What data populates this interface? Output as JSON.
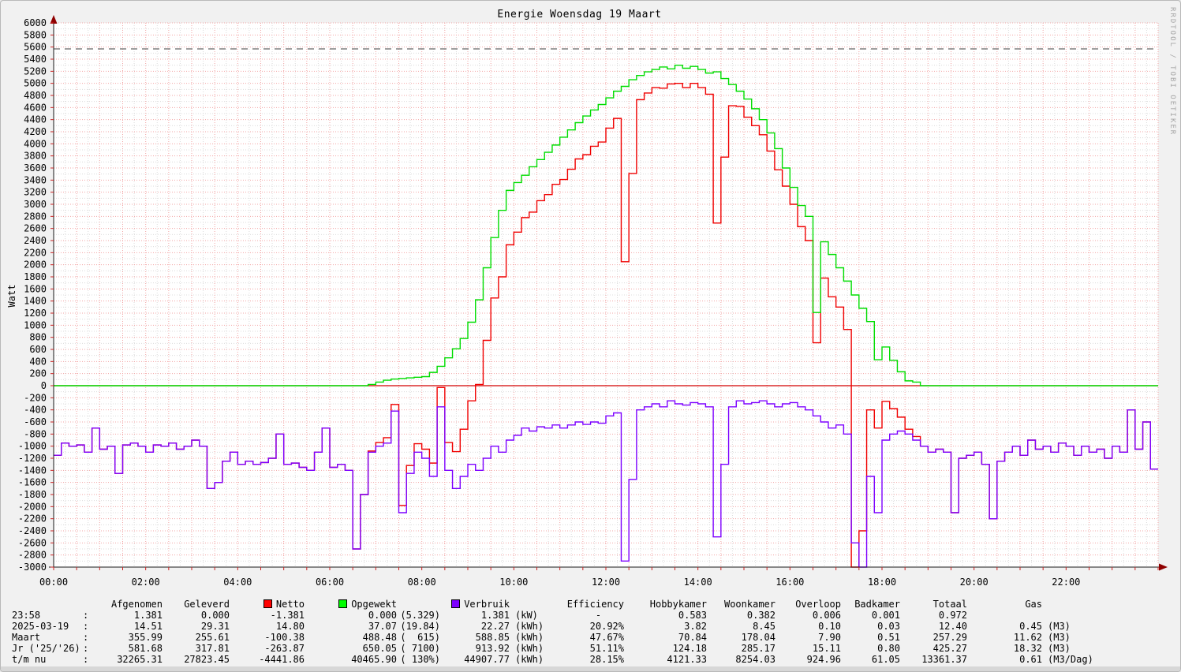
{
  "title": "Energie Woensdag  19 Maart",
  "watermark": "RRDTOOL / TOBI OETIKER",
  "chart_data": {
    "type": "line",
    "title": "Energie Woensdag  19 Maart",
    "ylabel": "Watt",
    "ylim": [
      -3000,
      6000
    ],
    "y_tick_step": 200,
    "y_minor_step": 100,
    "x_tick_labels": [
      "00:00",
      "02:00",
      "04:00",
      "06:00",
      "08:00",
      "10:00",
      "12:00",
      "14:00",
      "16:00",
      "18:00",
      "20:00",
      "22:00"
    ],
    "x_tick_hours": [
      0,
      2,
      4,
      6,
      8,
      10,
      12,
      14,
      16,
      18,
      20,
      22
    ],
    "x_major_minutes": 30,
    "x_minor_minutes": 15,
    "x_range_hours": [
      0,
      24
    ],
    "grid": true,
    "legend_position": "bottom",
    "hrules": [
      {
        "value": 5570,
        "style": "dashed",
        "color": "#666666"
      },
      {
        "value": 0,
        "style": "solid",
        "color": "#d40000"
      }
    ],
    "colors": {
      "major_grid": "#f2a5a5",
      "minor_grid": "#dcdcdc",
      "axis": "#1a1a1a",
      "arrow": "#8f0000",
      "tick": "#cc2222",
      "canvas": "#ffffff"
    },
    "sample_minutes": 10,
    "series": [
      {
        "name": "Netto",
        "color": "#f00000",
        "values": [
          -1150,
          -950,
          -1000,
          -980,
          -1100,
          -700,
          -1050,
          -1000,
          -1450,
          -980,
          -950,
          -1000,
          -1100,
          -980,
          -1000,
          -950,
          -1050,
          -1000,
          -900,
          -1000,
          -1700,
          -1600,
          -1250,
          -1100,
          -1300,
          -1250,
          -1300,
          -1270,
          -1200,
          -800,
          -1300,
          -1280,
          -1350,
          -1400,
          -1100,
          -700,
          -1350,
          -1300,
          -1400,
          -2700,
          -1800,
          -1080,
          -940,
          -860,
          -310,
          -1980,
          -1320,
          -960,
          -1050,
          -1280,
          -30,
          -940,
          -1090,
          -720,
          -250,
          20,
          750,
          1450,
          1800,
          2330,
          2540,
          2780,
          2870,
          3060,
          3160,
          3330,
          3410,
          3580,
          3750,
          3820,
          3960,
          4030,
          4260,
          4420,
          2050,
          3510,
          4730,
          4840,
          4930,
          4920,
          4990,
          5000,
          4930,
          5000,
          4930,
          4820,
          2690,
          3780,
          4630,
          4620,
          4440,
          4300,
          4150,
          3880,
          3570,
          3300,
          3000,
          2630,
          2400,
          710,
          1780,
          1470,
          1300,
          930,
          -3000,
          -2400,
          -400,
          -700,
          -260,
          -380,
          -520,
          -720,
          -840,
          -1000,
          -1100,
          -1050,
          -1100,
          -2100,
          -1200,
          -1150,
          -1100,
          -1300,
          -2200,
          -1250,
          -1100,
          -1000,
          -1150,
          -900,
          -1050,
          -1000,
          -1100,
          -950,
          -1000,
          -1150,
          -1000,
          -1100,
          -1050,
          -1200,
          -1000,
          -1100,
          -400,
          -1050,
          -600,
          -1380
        ]
      },
      {
        "name": "Opgewekt",
        "color": "#00dd00",
        "values": [
          0,
          0,
          0,
          0,
          0,
          0,
          0,
          0,
          0,
          0,
          0,
          0,
          0,
          0,
          0,
          0,
          0,
          0,
          0,
          0,
          0,
          0,
          0,
          0,
          0,
          0,
          0,
          0,
          0,
          0,
          0,
          0,
          0,
          0,
          0,
          0,
          0,
          0,
          0,
          0,
          0,
          20,
          60,
          90,
          110,
          120,
          130,
          140,
          150,
          220,
          320,
          460,
          610,
          780,
          1050,
          1420,
          1950,
          2450,
          2900,
          3230,
          3360,
          3480,
          3620,
          3740,
          3860,
          3980,
          4110,
          4230,
          4350,
          4460,
          4560,
          4650,
          4760,
          4870,
          4950,
          5060,
          5130,
          5190,
          5230,
          5270,
          5240,
          5300,
          5250,
          5280,
          5230,
          5170,
          5190,
          5080,
          4980,
          4870,
          4740,
          4580,
          4400,
          4180,
          3920,
          3600,
          3280,
          2980,
          2800,
          1210,
          2380,
          2170,
          1950,
          1730,
          1500,
          1280,
          1060,
          430,
          640,
          420,
          230,
          80,
          60,
          0,
          0,
          0,
          0,
          0,
          0,
          0,
          0,
          0,
          0,
          0,
          0,
          0,
          0,
          0,
          0,
          0,
          0,
          0,
          0,
          0,
          0,
          0,
          0,
          0,
          0,
          0,
          0,
          0,
          0,
          0
        ]
      },
      {
        "name": "Verbruik",
        "color": "#7d00ff",
        "values": [
          -1150,
          -950,
          -1000,
          -980,
          -1100,
          -700,
          -1050,
          -1000,
          -1450,
          -980,
          -950,
          -1000,
          -1100,
          -980,
          -1000,
          -950,
          -1050,
          -1000,
          -900,
          -1000,
          -1700,
          -1600,
          -1250,
          -1100,
          -1300,
          -1250,
          -1300,
          -1270,
          -1200,
          -800,
          -1300,
          -1280,
          -1350,
          -1400,
          -1100,
          -700,
          -1350,
          -1300,
          -1400,
          -2700,
          -1800,
          -1100,
          -1000,
          -950,
          -420,
          -2100,
          -1450,
          -1100,
          -1200,
          -1500,
          -350,
          -1400,
          -1700,
          -1500,
          -1300,
          -1400,
          -1200,
          -1000,
          -1100,
          -900,
          -820,
          -700,
          -750,
          -680,
          -700,
          -650,
          -700,
          -650,
          -600,
          -640,
          -600,
          -620,
          -500,
          -450,
          -2900,
          -1550,
          -400,
          -350,
          -300,
          -350,
          -250,
          -300,
          -320,
          -280,
          -300,
          -350,
          -2500,
          -1300,
          -350,
          -250,
          -300,
          -280,
          -250,
          -300,
          -350,
          -300,
          -280,
          -350,
          -400,
          -500,
          -600,
          -700,
          -650,
          -800,
          -2600,
          -3000,
          -1500,
          -2100,
          -900,
          -800,
          -750,
          -800,
          -900,
          -1000,
          -1100,
          -1050,
          -1100,
          -2100,
          -1200,
          -1150,
          -1100,
          -1300,
          -2200,
          -1250,
          -1100,
          -1000,
          -1150,
          -900,
          -1050,
          -1000,
          -1100,
          -950,
          -1000,
          -1150,
          -1000,
          -1100,
          -1050,
          -1200,
          -1000,
          -1100,
          -400,
          -1050,
          -600,
          -1380
        ]
      }
    ]
  },
  "summary_table": {
    "headers": {
      "afgenomen": "Afgenomen",
      "geleverd": "Geleverd",
      "netto": {
        "text": "Netto",
        "swatch": "#ff0000"
      },
      "opgewekt": {
        "text": "Opgewekt",
        "swatch": "#00ff00"
      },
      "verbruik": {
        "text": "Verbruik",
        "swatch": "#7d00ff"
      },
      "efficiency": "Efficiency",
      "hobbykamer": "Hobbykamer",
      "woonkamer": "Woonkamer",
      "overloop": "Overloop",
      "badkamer": "Badkamer",
      "totaal": "Totaal",
      "gas": "Gas"
    },
    "rows": [
      {
        "label": "23:58",
        "colon": ":",
        "afgenomen": "1.381",
        "geleverd": "0.000",
        "netto": "-1.381",
        "opgewekt": "0.000",
        "opgewekt_extra": "(5.329)",
        "verbruik": "1.381",
        "verbruik_unit": "(kW)",
        "efficiency": "-    ",
        "hobbykamer": "0.583",
        "woonkamer": "0.382",
        "overloop": "0.006",
        "badkamer": "0.001",
        "totaal": "0.972",
        "gas": "",
        "gas_unit": ""
      },
      {
        "label": "2025-03-19",
        "colon": ":",
        "afgenomen": "14.51",
        "geleverd": "29.31",
        "netto": "14.80",
        "opgewekt": "37.07",
        "opgewekt_extra": "(19.84)",
        "verbruik": "22.27",
        "verbruik_unit": "(kWh)",
        "efficiency": "20.92%",
        "hobbykamer": "3.82",
        "woonkamer": "8.45",
        "overloop": "0.10",
        "badkamer": "0.03",
        "totaal": "12.40",
        "gas": "0.45",
        "gas_unit": "(M3)"
      },
      {
        "label": "Maart",
        "colon": ":",
        "afgenomen": "355.99",
        "geleverd": "255.61",
        "netto": "-100.38",
        "opgewekt": "488.48",
        "opgewekt_extra": "(  615)",
        "verbruik": "588.85",
        "verbruik_unit": "(kWh)",
        "efficiency": "47.67%",
        "hobbykamer": "70.84",
        "woonkamer": "178.04",
        "overloop": "7.90",
        "badkamer": "0.51",
        "totaal": "257.29",
        "gas": "11.62",
        "gas_unit": "(M3)"
      },
      {
        "label": "Jr ('25/'26)",
        "colon": ":",
        "afgenomen": "581.68",
        "geleverd": "317.81",
        "netto": "-263.87",
        "opgewekt": "650.05",
        "opgewekt_extra": "( 7100)",
        "verbruik": "913.92",
        "verbruik_unit": "(kWh)",
        "efficiency": "51.11%",
        "hobbykamer": "124.18",
        "woonkamer": "285.17",
        "overloop": "15.11",
        "badkamer": "0.80",
        "totaal": "425.27",
        "gas": "18.32",
        "gas_unit": "(M3)"
      },
      {
        "label": "t/m nu",
        "colon": ":",
        "afgenomen": "32265.31",
        "geleverd": "27823.45",
        "netto": "-4441.86",
        "opgewekt": "40465.90",
        "opgewekt_extra": "( 130%)",
        "verbruik": "44907.77",
        "verbruik_unit": "(kWh)",
        "efficiency": "28.15%",
        "hobbykamer": "4121.33",
        "woonkamer": "8254.03",
        "overloop": "924.96",
        "badkamer": "61.05",
        "totaal": "13361.37",
        "gas": "0.61",
        "gas_unit": "(M3/Dag)"
      }
    ]
  }
}
